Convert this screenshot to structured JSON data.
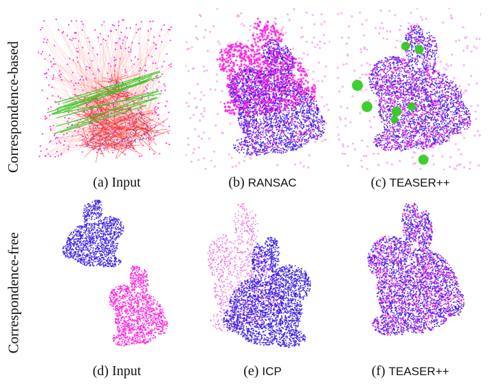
{
  "rows": [
    {
      "label": "Correspondence-based",
      "panels": [
        {
          "letter": "(a)",
          "method": "Input",
          "method_style": "serif",
          "viz": "corr-input"
        },
        {
          "letter": "(b)",
          "method": "RANSAC",
          "method_style": "sans",
          "viz": "ransac"
        },
        {
          "letter": "(c)",
          "method": "TEASER++",
          "method_style": "sans",
          "viz": "teaser-corr"
        }
      ]
    },
    {
      "label": "Correspondence-free",
      "panels": [
        {
          "letter": "(d)",
          "method": "Input",
          "method_style": "serif",
          "viz": "free-input"
        },
        {
          "letter": "(e)",
          "method": "ICP",
          "method_style": "sans",
          "viz": "icp"
        },
        {
          "letter": "(f)",
          "method": "TEASER++",
          "method_style": "sans",
          "viz": "teaser-free"
        }
      ]
    }
  ],
  "colors": {
    "target_points": "#3a1ee8",
    "source_points": "#ff1fe0",
    "outlier_corr": "#ff2a2a",
    "inlier_corr": "#33cc22"
  }
}
